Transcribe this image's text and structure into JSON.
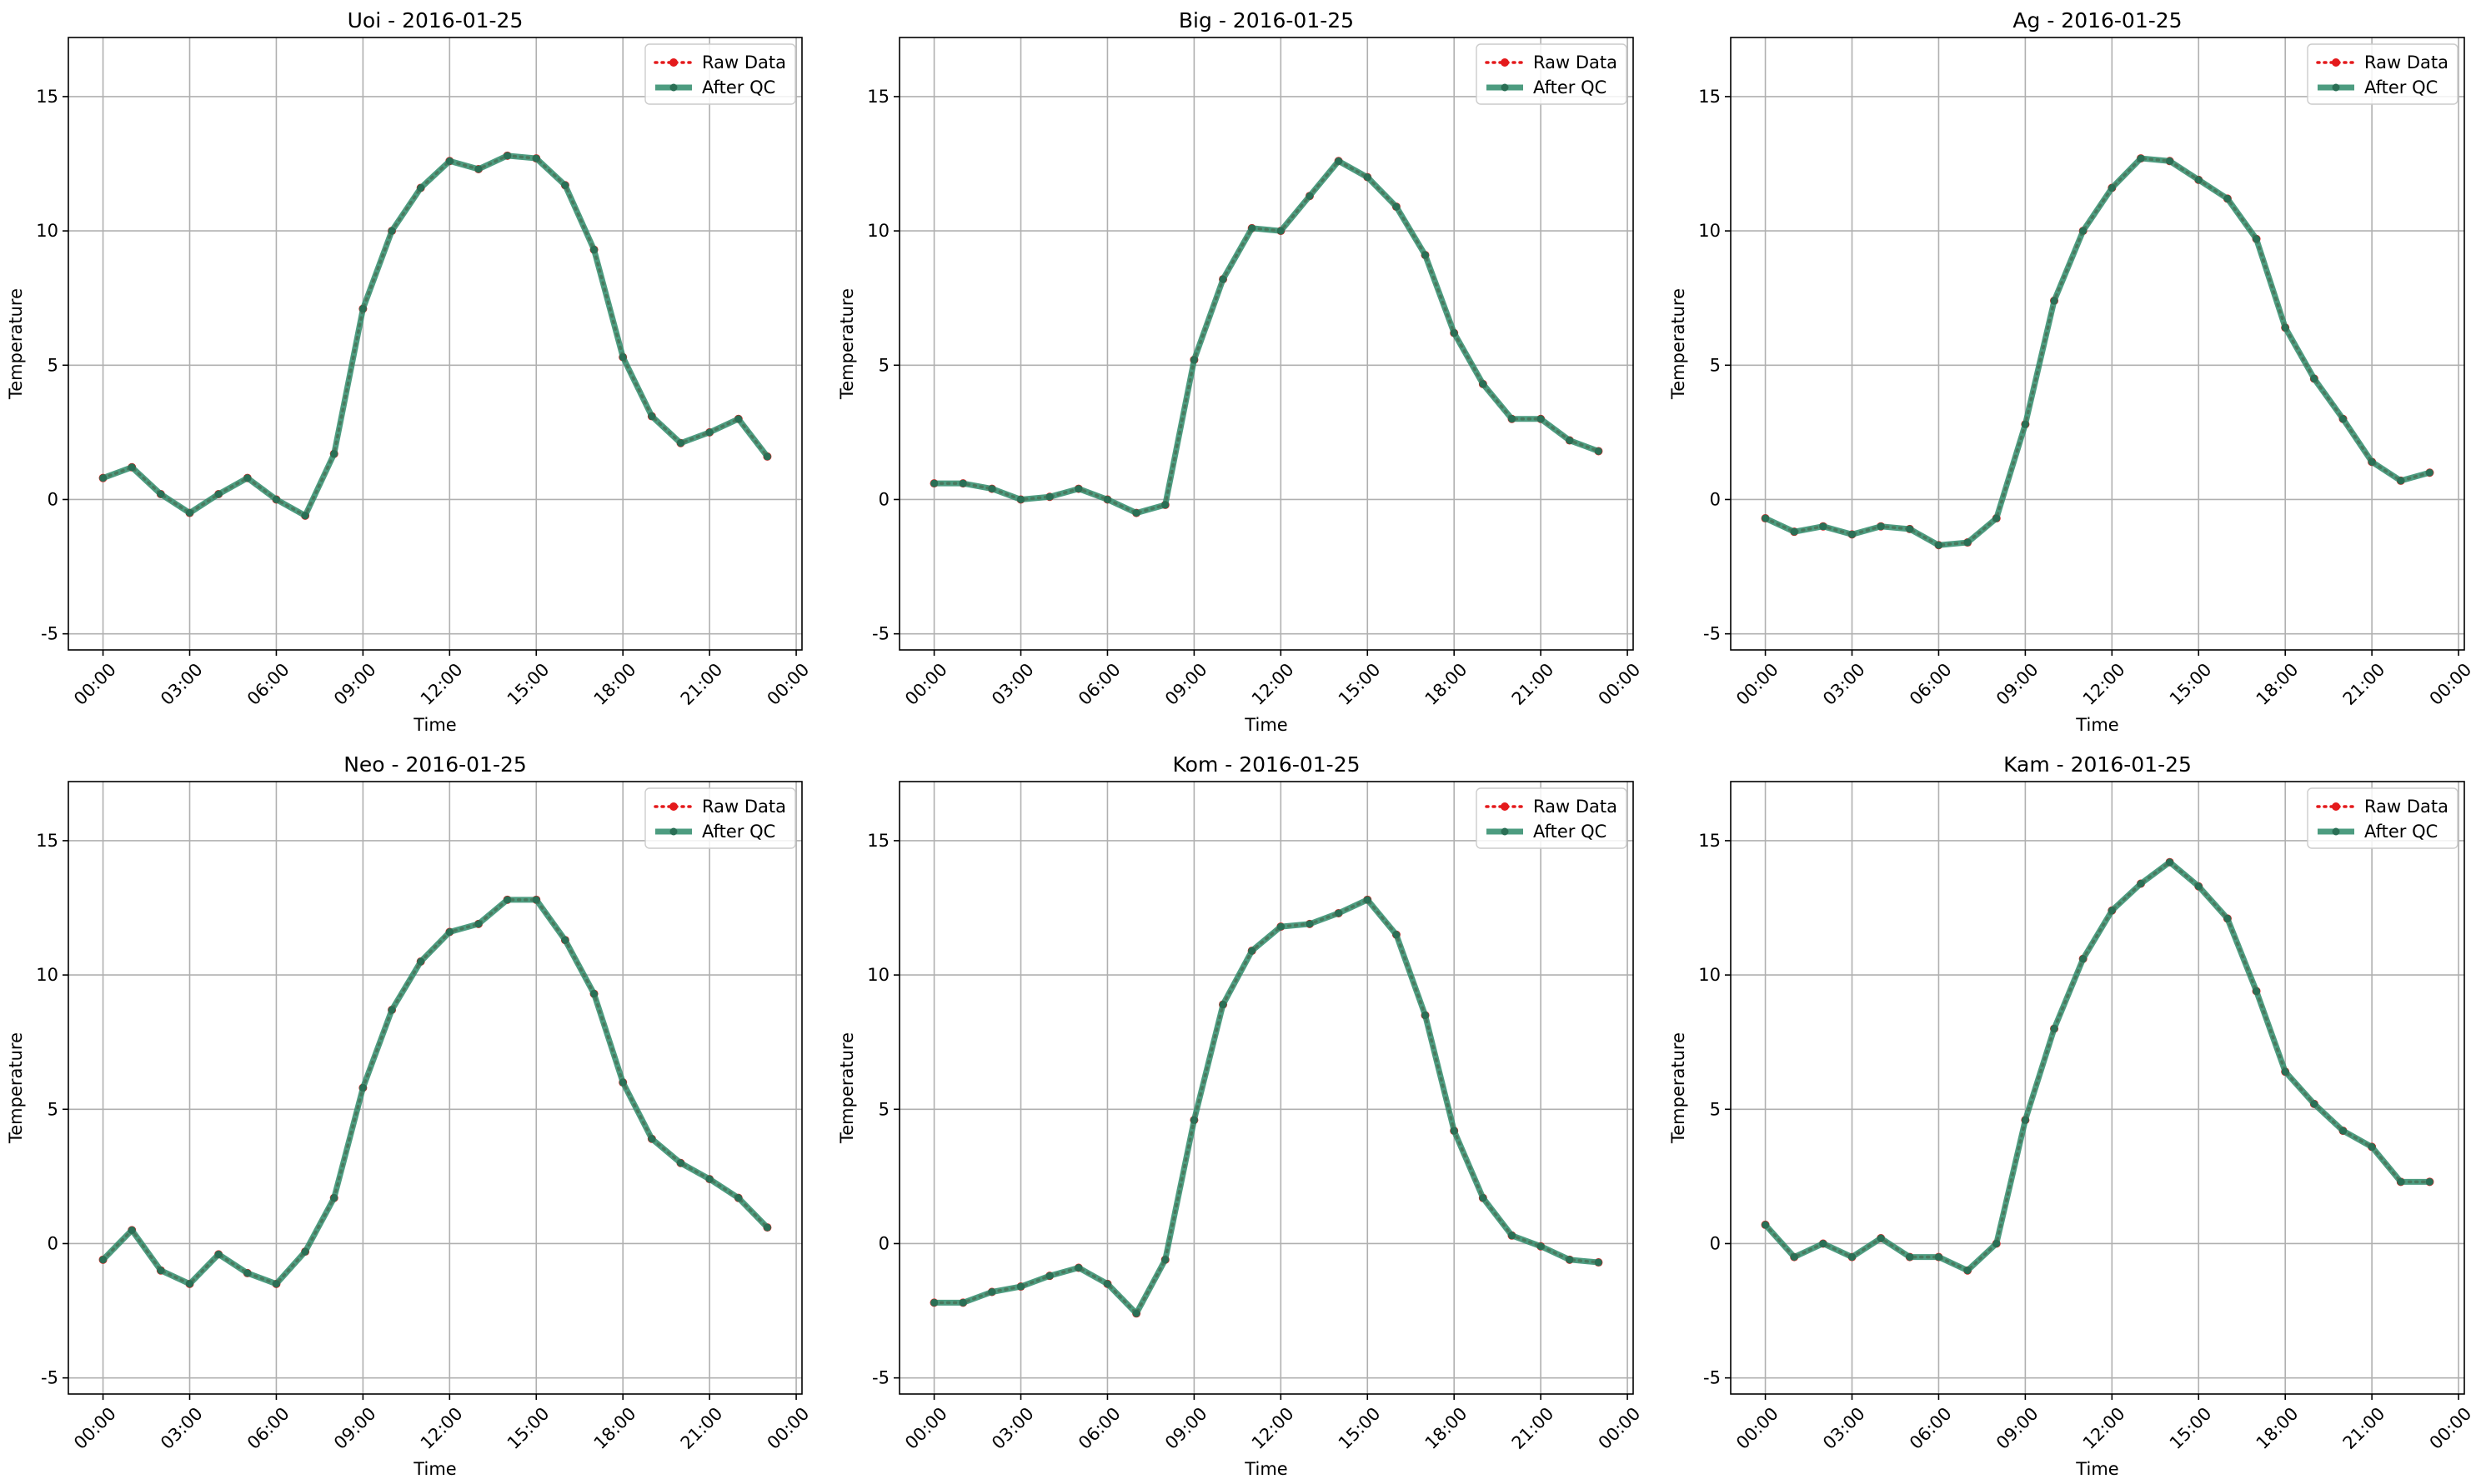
{
  "chart_data": [
    {
      "type": "line",
      "title": "Uoi - 2016-01-25",
      "xlabel": "Time",
      "ylabel": "Temperature",
      "x_ticks": [
        "00:00",
        "03:00",
        "06:00",
        "09:00",
        "12:00",
        "15:00",
        "18:00",
        "21:00",
        "00:00"
      ],
      "y_ticks": [
        -5,
        0,
        5,
        10,
        15
      ],
      "xlim_hours": [
        -1.2,
        24.2
      ],
      "ylim": [
        -5.6,
        17.2
      ],
      "grid": true,
      "legend_position": "top-right",
      "x_hours": [
        0,
        1,
        2,
        3,
        4,
        5,
        6,
        7,
        8,
        9,
        10,
        11,
        12,
        13,
        14,
        15,
        16,
        17,
        18,
        19,
        20,
        21,
        22,
        23
      ],
      "series": [
        {
          "name": "Raw Data",
          "style": "dotted-markers",
          "color": "#e41a1c",
          "values": [
            0.8,
            1.2,
            0.2,
            -0.5,
            0.2,
            0.8,
            0.0,
            -0.6,
            1.7,
            7.1,
            10.0,
            11.6,
            12.6,
            12.3,
            12.8,
            12.7,
            11.7,
            9.3,
            5.3,
            3.1,
            2.1,
            2.5,
            3.0,
            1.6
          ]
        },
        {
          "name": "After QC",
          "style": "thick-line-markers",
          "color": "#2e8b6a",
          "values": [
            0.8,
            1.2,
            0.2,
            -0.5,
            0.2,
            0.8,
            0.0,
            -0.6,
            1.7,
            7.1,
            10.0,
            11.6,
            12.6,
            12.3,
            12.8,
            12.7,
            11.7,
            9.3,
            5.3,
            3.1,
            2.1,
            2.5,
            3.0,
            1.6
          ]
        }
      ]
    },
    {
      "type": "line",
      "title": "Big - 2016-01-25",
      "xlabel": "Time",
      "ylabel": "Temperature",
      "x_ticks": [
        "00:00",
        "03:00",
        "06:00",
        "09:00",
        "12:00",
        "15:00",
        "18:00",
        "21:00",
        "00:00"
      ],
      "y_ticks": [
        -5,
        0,
        5,
        10,
        15
      ],
      "xlim_hours": [
        -1.2,
        24.2
      ],
      "ylim": [
        -5.6,
        17.2
      ],
      "grid": true,
      "legend_position": "top-right",
      "x_hours": [
        0,
        1,
        2,
        3,
        4,
        5,
        6,
        7,
        8,
        9,
        10,
        11,
        12,
        13,
        14,
        15,
        16,
        17,
        18,
        19,
        20,
        21,
        22,
        23
      ],
      "series": [
        {
          "name": "Raw Data",
          "style": "dotted-markers",
          "color": "#e41a1c",
          "values": [
            0.6,
            0.6,
            0.4,
            0.0,
            0.1,
            0.4,
            0.0,
            -0.5,
            -0.2,
            5.2,
            8.2,
            10.1,
            10.0,
            11.3,
            12.6,
            12.0,
            10.9,
            9.1,
            6.2,
            4.3,
            3.0,
            3.0,
            2.2,
            1.8
          ]
        },
        {
          "name": "After QC",
          "style": "thick-line-markers",
          "color": "#2e8b6a",
          "values": [
            0.6,
            0.6,
            0.4,
            0.0,
            0.1,
            0.4,
            0.0,
            -0.5,
            -0.2,
            5.2,
            8.2,
            10.1,
            10.0,
            11.3,
            12.6,
            12.0,
            10.9,
            9.1,
            6.2,
            4.3,
            3.0,
            3.0,
            2.2,
            1.8
          ]
        }
      ]
    },
    {
      "type": "line",
      "title": "Ag - 2016-01-25",
      "xlabel": "Time",
      "ylabel": "Temperature",
      "x_ticks": [
        "00:00",
        "03:00",
        "06:00",
        "09:00",
        "12:00",
        "15:00",
        "18:00",
        "21:00",
        "00:00"
      ],
      "y_ticks": [
        -5,
        0,
        5,
        10,
        15
      ],
      "xlim_hours": [
        -1.2,
        24.2
      ],
      "ylim": [
        -5.6,
        17.2
      ],
      "grid": true,
      "legend_position": "top-right",
      "x_hours": [
        0,
        1,
        2,
        3,
        4,
        5,
        6,
        7,
        8,
        9,
        10,
        11,
        12,
        13,
        14,
        15,
        16,
        17,
        18,
        19,
        20,
        21,
        22,
        23
      ],
      "series": [
        {
          "name": "Raw Data",
          "style": "dotted-markers",
          "color": "#e41a1c",
          "values": [
            -0.7,
            -1.2,
            -1.0,
            -1.3,
            -1.0,
            -1.1,
            -1.7,
            -1.6,
            -0.7,
            2.8,
            7.4,
            10.0,
            11.6,
            12.7,
            12.6,
            11.9,
            11.2,
            9.7,
            6.4,
            4.5,
            3.0,
            1.4,
            0.7,
            1.0
          ]
        },
        {
          "name": "After QC",
          "style": "thick-line-markers",
          "color": "#2e8b6a",
          "values": [
            -0.7,
            -1.2,
            -1.0,
            -1.3,
            -1.0,
            -1.1,
            -1.7,
            -1.6,
            -0.7,
            2.8,
            7.4,
            10.0,
            11.6,
            12.7,
            12.6,
            11.9,
            11.2,
            9.7,
            6.4,
            4.5,
            3.0,
            1.4,
            0.7,
            1.0
          ]
        }
      ]
    },
    {
      "type": "line",
      "title": "Neo - 2016-01-25",
      "xlabel": "Time",
      "ylabel": "Temperature",
      "x_ticks": [
        "00:00",
        "03:00",
        "06:00",
        "09:00",
        "12:00",
        "15:00",
        "18:00",
        "21:00",
        "00:00"
      ],
      "y_ticks": [
        -5,
        0,
        5,
        10,
        15
      ],
      "xlim_hours": [
        -1.2,
        24.2
      ],
      "ylim": [
        -5.6,
        17.2
      ],
      "grid": true,
      "legend_position": "top-right",
      "x_hours": [
        0,
        1,
        2,
        3,
        4,
        5,
        6,
        7,
        8,
        9,
        10,
        11,
        12,
        13,
        14,
        15,
        16,
        17,
        18,
        19,
        20,
        21,
        22,
        23
      ],
      "series": [
        {
          "name": "Raw Data",
          "style": "dotted-markers",
          "color": "#e41a1c",
          "values": [
            -0.6,
            0.5,
            -1.0,
            -1.5,
            -0.4,
            -1.1,
            -1.5,
            -0.3,
            1.7,
            5.8,
            8.7,
            10.5,
            11.6,
            11.9,
            12.8,
            12.8,
            11.3,
            9.3,
            6.0,
            3.9,
            3.0,
            2.4,
            1.7,
            0.6
          ]
        },
        {
          "name": "After QC",
          "style": "thick-line-markers",
          "color": "#2e8b6a",
          "values": [
            -0.6,
            0.5,
            -1.0,
            -1.5,
            -0.4,
            -1.1,
            -1.5,
            -0.3,
            1.7,
            5.8,
            8.7,
            10.5,
            11.6,
            11.9,
            12.8,
            12.8,
            11.3,
            9.3,
            6.0,
            3.9,
            3.0,
            2.4,
            1.7,
            0.6
          ]
        }
      ]
    },
    {
      "type": "line",
      "title": "Kom - 2016-01-25",
      "xlabel": "Time",
      "ylabel": "Temperature",
      "x_ticks": [
        "00:00",
        "03:00",
        "06:00",
        "09:00",
        "12:00",
        "15:00",
        "18:00",
        "21:00",
        "00:00"
      ],
      "y_ticks": [
        -5,
        0,
        5,
        10,
        15
      ],
      "xlim_hours": [
        -1.2,
        24.2
      ],
      "ylim": [
        -5.6,
        17.2
      ],
      "grid": true,
      "legend_position": "top-right",
      "x_hours": [
        0,
        1,
        2,
        3,
        4,
        5,
        6,
        7,
        8,
        9,
        10,
        11,
        12,
        13,
        14,
        15,
        16,
        17,
        18,
        19,
        20,
        21,
        22,
        23
      ],
      "series": [
        {
          "name": "Raw Data",
          "style": "dotted-markers",
          "color": "#e41a1c",
          "values": [
            -2.2,
            -2.2,
            -1.8,
            -1.6,
            -1.2,
            -0.9,
            -1.5,
            -2.6,
            -0.6,
            4.6,
            8.9,
            10.9,
            11.8,
            11.9,
            12.3,
            12.8,
            11.5,
            8.5,
            4.2,
            1.7,
            0.3,
            -0.1,
            -0.6,
            -0.7
          ]
        },
        {
          "name": "After QC",
          "style": "thick-line-markers",
          "color": "#2e8b6a",
          "values": [
            -2.2,
            -2.2,
            -1.8,
            -1.6,
            -1.2,
            -0.9,
            -1.5,
            -2.6,
            -0.6,
            4.6,
            8.9,
            10.9,
            11.8,
            11.9,
            12.3,
            12.8,
            11.5,
            8.5,
            4.2,
            1.7,
            0.3,
            -0.1,
            -0.6,
            -0.7
          ]
        }
      ]
    },
    {
      "type": "line",
      "title": "Kam - 2016-01-25",
      "xlabel": "Time",
      "ylabel": "Temperature",
      "x_ticks": [
        "00:00",
        "03:00",
        "06:00",
        "09:00",
        "12:00",
        "15:00",
        "18:00",
        "21:00",
        "00:00"
      ],
      "y_ticks": [
        -5,
        0,
        5,
        10,
        15
      ],
      "xlim_hours": [
        -1.2,
        24.2
      ],
      "ylim": [
        -5.6,
        17.2
      ],
      "grid": true,
      "legend_position": "top-right",
      "x_hours": [
        0,
        1,
        2,
        3,
        4,
        5,
        6,
        7,
        8,
        9,
        10,
        11,
        12,
        13,
        14,
        15,
        16,
        17,
        18,
        19,
        20,
        21,
        22,
        23
      ],
      "series": [
        {
          "name": "Raw Data",
          "style": "dotted-markers",
          "color": "#e41a1c",
          "values": [
            0.7,
            -0.5,
            0.0,
            -0.5,
            0.2,
            -0.5,
            -0.5,
            -1.0,
            0.0,
            4.6,
            8.0,
            10.6,
            12.4,
            13.4,
            14.2,
            13.3,
            12.1,
            9.4,
            6.4,
            5.2,
            4.2,
            3.6,
            2.3,
            2.3
          ]
        },
        {
          "name": "After QC",
          "style": "thick-line-markers",
          "color": "#2e8b6a",
          "values": [
            0.7,
            -0.5,
            0.0,
            -0.5,
            0.2,
            -0.5,
            -0.5,
            -1.0,
            0.0,
            4.6,
            8.0,
            10.6,
            12.4,
            13.4,
            14.2,
            13.3,
            12.1,
            9.4,
            6.4,
            5.2,
            4.2,
            3.6,
            2.3,
            2.3
          ]
        }
      ]
    }
  ]
}
